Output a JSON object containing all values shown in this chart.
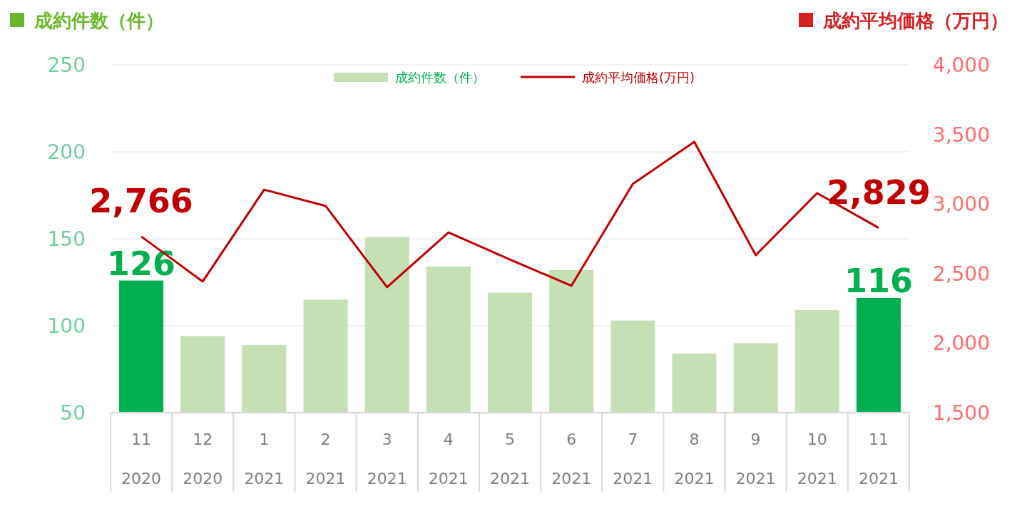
{
  "chart_data": {
    "type": "bar",
    "ylabel": "成約件数（件）",
    "y2label": "成約平均価格（万円）",
    "categories": [
      "11 2020",
      "12 2020",
      "1 2021",
      "2 2021",
      "3 2021",
      "4 2021",
      "5 2021",
      "6 2021",
      "7 2021",
      "8 2021",
      "9 2021",
      "10 2021",
      "11 2021"
    ],
    "series": [
      {
        "name": "成約件数（件）",
        "color": "#c5e0b4",
        "colors": [
          "#00b050",
          "#c5e0b4",
          "#c5e0b4",
          "#c5e0b4",
          "#c5e0b4",
          "#c5e0b4",
          "#c5e0b4",
          "#c5e0b4",
          "#c5e0b4",
          "#c5e0b4",
          "#c5e0b4",
          "#c5e0b4",
          "#00b050"
        ],
        "values": [
          126,
          94,
          89,
          115,
          151,
          134,
          119,
          132,
          103,
          84,
          90,
          109,
          116
        ],
        "value_labels": [
          "126",
          null,
          null,
          null,
          null,
          null,
          null,
          null,
          null,
          null,
          null,
          null,
          "116"
        ]
      },
      {
        "name": "成約平均価格(万円)",
        "type": "line",
        "axis": "y2",
        "color": "#c00000",
        "values": [
          2766,
          2443,
          3103,
          2986,
          2402,
          2796,
          2601,
          2412,
          3144,
          3447,
          2632,
          3078,
          2829
        ],
        "value_labels": [
          "2,766",
          null,
          null,
          null,
          null,
          null,
          null,
          null,
          null,
          null,
          null,
          null,
          "2,829"
        ]
      }
    ],
    "ylim": [
      50,
      250
    ],
    "yticks": [
      50,
      100,
      150,
      200,
      250
    ],
    "y2lim": [
      1500,
      4000
    ],
    "y2ticks": [
      {
        "value": 1500,
        "label": "1,500"
      },
      {
        "value": 2000,
        "label": "2,000"
      },
      {
        "value": 2500,
        "label": "2,500"
      },
      {
        "value": 3000,
        "label": "3,000"
      },
      {
        "value": 3500,
        "label": "3,500"
      },
      {
        "value": 4000,
        "label": "4,000"
      }
    ],
    "grid": "y",
    "legend": "top",
    "marker": "none",
    "line_style": "solid"
  }
}
